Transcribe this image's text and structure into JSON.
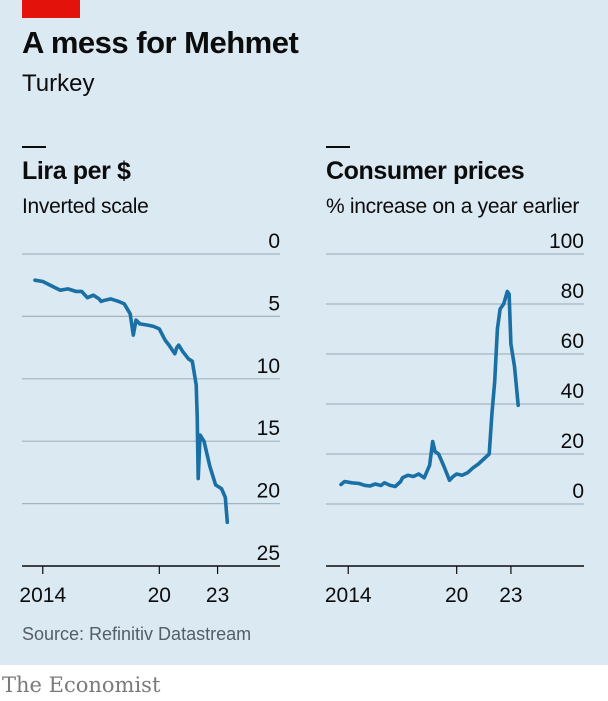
{
  "header": {
    "title": "A mess for Mehmet",
    "subtitle": "Turkey"
  },
  "source": "Source: Refinitiv Datastream",
  "brand": "The Economist",
  "colors": {
    "line": "#1a6fa5",
    "background": "#dbe9f3",
    "accent": "#e3120b",
    "grid": "#a3b4c1"
  },
  "chart_data": [
    {
      "type": "line",
      "title": "Lira per $",
      "subtitle": "Inverted scale",
      "y_inverted": true,
      "ylim": [
        0,
        25
      ],
      "y_ticks": [
        "0",
        "5",
        "10",
        "15",
        "20",
        "25"
      ],
      "x_ticks": [
        "2014",
        "20",
        "23"
      ],
      "xlim": [
        2013.6,
        2024.0
      ],
      "grid": true,
      "series": [
        {
          "x": [
            2013.6,
            2014.0,
            2014.5,
            2014.9,
            2015.3,
            2015.7,
            2016.0,
            2016.3,
            2016.6,
            2016.9,
            2017.0,
            2017.2,
            2017.5,
            2017.9,
            2018.2,
            2018.5,
            2018.66,
            2018.8,
            2019.0,
            2019.4,
            2019.7,
            2020.0,
            2020.3,
            2020.5,
            2020.8,
            2020.9,
            2021.0,
            2021.2,
            2021.5,
            2021.7,
            2021.9,
            2021.95,
            2022.0,
            2022.1,
            2022.3,
            2022.6,
            2022.9,
            2023.2,
            2023.4,
            2023.5
          ],
          "y": [
            2.1,
            2.2,
            2.6,
            2.9,
            2.8,
            3.0,
            3.0,
            3.5,
            3.3,
            3.6,
            3.8,
            3.7,
            3.6,
            3.8,
            4.0,
            4.8,
            6.5,
            5.3,
            5.6,
            5.7,
            5.8,
            6.0,
            6.9,
            7.3,
            8.0,
            7.5,
            7.3,
            7.8,
            8.4,
            8.6,
            10.5,
            13.0,
            18.0,
            14.5,
            15.0,
            17.0,
            18.5,
            18.8,
            19.5,
            21.5
          ]
        }
      ]
    },
    {
      "type": "line",
      "title": "Consumer prices",
      "subtitle": "% increase on a year earlier",
      "ylim": [
        -5,
        100
      ],
      "y_ticks": [
        "100",
        "80",
        "60",
        "40",
        "20",
        "0"
      ],
      "x_ticks": [
        "2014",
        "20",
        "23"
      ],
      "xlim": [
        2013.6,
        2024.0
      ],
      "grid": true,
      "series": [
        {
          "x": [
            2013.6,
            2013.8,
            2014.2,
            2014.6,
            2014.9,
            2015.2,
            2015.5,
            2015.8,
            2016.0,
            2016.3,
            2016.6,
            2016.9,
            2017.0,
            2017.3,
            2017.6,
            2017.9,
            2018.2,
            2018.5,
            2018.67,
            2018.8,
            2019.0,
            2019.3,
            2019.6,
            2019.8,
            2020.0,
            2020.3,
            2020.6,
            2020.9,
            2021.2,
            2021.5,
            2021.8,
            2021.95,
            2022.1,
            2022.25,
            2022.4,
            2022.6,
            2022.8,
            2022.9,
            2023.0,
            2023.2,
            2023.4
          ],
          "y": [
            7.8,
            9.0,
            8.5,
            8.2,
            7.5,
            7.2,
            8.0,
            7.4,
            8.5,
            7.5,
            7.0,
            9.0,
            10.5,
            11.5,
            11.0,
            12.0,
            10.5,
            15.5,
            25.0,
            21.0,
            20.0,
            15.0,
            9.5,
            11.0,
            12.0,
            11.5,
            12.5,
            14.5,
            16.0,
            18.0,
            20.0,
            36.0,
            49.0,
            70.0,
            78.0,
            80.0,
            85.0,
            84.0,
            64.0,
            55.0,
            39.5
          ]
        }
      ]
    }
  ]
}
